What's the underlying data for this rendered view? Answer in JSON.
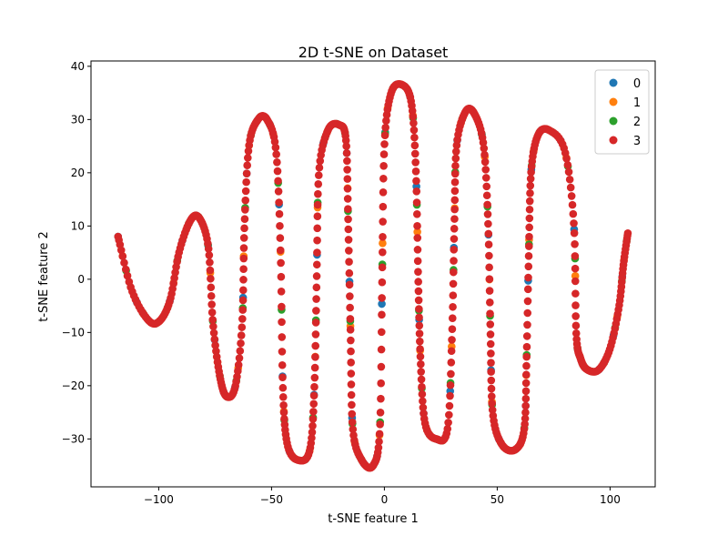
{
  "chart_data": {
    "type": "scatter",
    "title": "2D t-SNE on Dataset",
    "xlabel": "t-SNE feature 1",
    "ylabel": "t-SNE feature 2",
    "xlim": [
      -130,
      120
    ],
    "ylim": [
      -39,
      41
    ],
    "xticks": [
      -100,
      -50,
      0,
      50,
      100
    ],
    "yticks": [
      -30,
      -20,
      -10,
      0,
      10,
      20,
      30,
      40
    ],
    "grid": false,
    "legend_position": "upper-right",
    "curve_knots": [
      [
        -118,
        8
      ],
      [
        -112,
        -2
      ],
      [
        -105,
        -7.5
      ],
      [
        -100,
        -8
      ],
      [
        -95,
        -4
      ],
      [
        -91,
        5
      ],
      [
        -86,
        11
      ],
      [
        -82,
        11.5
      ],
      [
        -78,
        6
      ],
      [
        -76,
        -8
      ],
      [
        -73,
        -18
      ],
      [
        -70,
        -22
      ],
      [
        -66,
        -20
      ],
      [
        -63,
        -8
      ],
      [
        -62,
        10
      ],
      [
        -60,
        25
      ],
      [
        -56,
        30
      ],
      [
        -52,
        30
      ],
      [
        -48,
        24
      ],
      [
        -46,
        5
      ],
      [
        -45,
        -20
      ],
      [
        -43,
        -31
      ],
      [
        -38,
        -34
      ],
      [
        -33,
        -32
      ],
      [
        -31,
        -20
      ],
      [
        -30,
        0
      ],
      [
        -29,
        20
      ],
      [
        -25,
        28
      ],
      [
        -20,
        29
      ],
      [
        -17,
        26
      ],
      [
        -16,
        10
      ],
      [
        -15,
        -10
      ],
      [
        -14,
        -28
      ],
      [
        -10,
        -34
      ],
      [
        -5,
        -35
      ],
      [
        -2,
        -28
      ],
      [
        -1,
        0
      ],
      [
        0,
        25
      ],
      [
        3,
        35
      ],
      [
        8,
        36.5
      ],
      [
        12,
        33
      ],
      [
        14,
        20
      ],
      [
        15,
        0
      ],
      [
        16,
        -15
      ],
      [
        18,
        -27
      ],
      [
        23,
        -30
      ],
      [
        28,
        -28
      ],
      [
        30,
        -10
      ],
      [
        31,
        10
      ],
      [
        32,
        25
      ],
      [
        36,
        31.5
      ],
      [
        40,
        31
      ],
      [
        44,
        25
      ],
      [
        46,
        10
      ],
      [
        47,
        -10
      ],
      [
        48,
        -25
      ],
      [
        52,
        -31
      ],
      [
        58,
        -32
      ],
      [
        62,
        -28
      ],
      [
        63,
        -15
      ],
      [
        64,
        5
      ],
      [
        65,
        20
      ],
      [
        68,
        27
      ],
      [
        73,
        28
      ],
      [
        80,
        24
      ],
      [
        84,
        10
      ],
      [
        85,
        -10
      ],
      [
        87,
        -15
      ],
      [
        90,
        -17
      ],
      [
        95,
        -17
      ],
      [
        100,
        -13
      ],
      [
        104,
        -5
      ],
      [
        106,
        3
      ],
      [
        108,
        9
      ]
    ],
    "series": [
      {
        "name": "0",
        "color": "#1f77b4",
        "offset": 0,
        "sample_count": 55
      },
      {
        "name": "1",
        "color": "#ff7f0e",
        "offset": 0.31,
        "sample_count": 55
      },
      {
        "name": "2",
        "color": "#2ca02c",
        "offset": 0.62,
        "sample_count": 70
      },
      {
        "name": "3",
        "color": "#d62728",
        "offset": 0,
        "sample_count": 700
      }
    ]
  }
}
